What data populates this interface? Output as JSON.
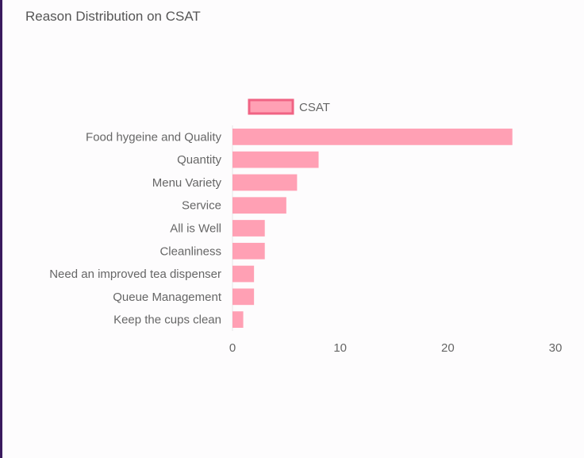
{
  "card": {
    "title": "Reason Distribution on CSAT"
  },
  "chart_data": {
    "type": "bar",
    "orientation": "horizontal",
    "categories": [
      "Food hygeine and Quality",
      "Quantity",
      "Menu Variety",
      "Service",
      "All is Well",
      "Cleanliness",
      "Need an improved tea dispenser",
      "Queue Management",
      "Keep the cups clean"
    ],
    "series": [
      {
        "name": "CSAT",
        "values": [
          26,
          8,
          6,
          5,
          3,
          3,
          2,
          2,
          1
        ],
        "color": "#ffa0b4",
        "border_color": "#f06384"
      }
    ],
    "x_ticks": [
      "0",
      "10",
      "20",
      "30"
    ],
    "xlim": [
      0,
      30
    ],
    "grid": false,
    "legend": "top-center",
    "title": "Reason Distribution on CSAT"
  }
}
